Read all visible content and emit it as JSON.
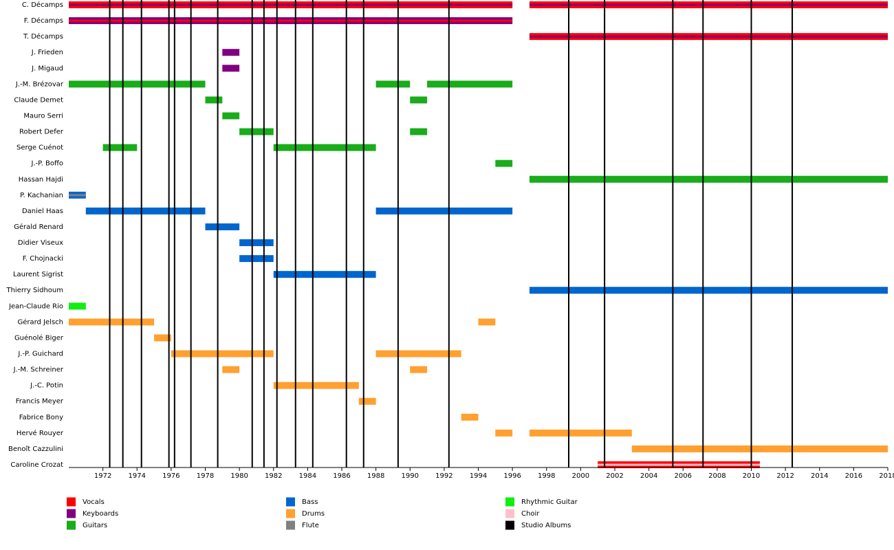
{
  "chart_data": {
    "type": "timeline",
    "xlim": [
      1970,
      2018
    ],
    "xticks": [
      1972,
      1974,
      1976,
      1978,
      1980,
      1982,
      1984,
      1986,
      1988,
      1990,
      1992,
      1994,
      1996,
      1998,
      2000,
      2002,
      2004,
      2006,
      2008,
      2010,
      2012,
      2014,
      2016,
      2018
    ],
    "series": [
      {
        "name": "Vocals",
        "color": "#ff0000"
      },
      {
        "name": "Keyboards",
        "color": "#800080"
      },
      {
        "name": "Guitars",
        "color": "#1aac1a"
      },
      {
        "name": "Bass",
        "color": "#0066cc"
      },
      {
        "name": "Drums",
        "color": "#ffa030"
      },
      {
        "name": "Flute",
        "color": "#808080"
      },
      {
        "name": "Rhythmic Guitar",
        "color": "#11ee11"
      },
      {
        "name": "Choir",
        "color": "#ffc0cb"
      },
      {
        "name": "Studio Albums",
        "color": "#000000"
      }
    ],
    "albums": [
      1972.4,
      1973.17,
      1974.26,
      1975.87,
      1976.2,
      1977.16,
      1978.73,
      1980.75,
      1981.44,
      1982.2,
      1983.29,
      1984.3,
      1986.27,
      1987.28,
      1989.3,
      1992.28,
      1999.3,
      2001.4,
      2005.4,
      2007.17,
      2010.0,
      2012.4
    ],
    "members": [
      {
        "name": "C. Décamps",
        "periods": [
          {
            "start": 1970,
            "end": 1996,
            "role": "Vocals",
            "also": "Keyboards"
          },
          {
            "start": 1997,
            "end": 2018,
            "role": "Vocals",
            "also": "Keyboards"
          }
        ]
      },
      {
        "name": "F. Décamps",
        "periods": [
          {
            "start": 1970,
            "end": 1996,
            "role": "Keyboards",
            "also": "Vocals"
          }
        ]
      },
      {
        "name": "T. Décamps",
        "periods": [
          {
            "start": 1997,
            "end": 2018,
            "role": "Vocals",
            "also": "Keyboards"
          }
        ]
      },
      {
        "name": "J. Frieden",
        "periods": [
          {
            "start": 1979,
            "end": 1980,
            "role": "Keyboards"
          }
        ]
      },
      {
        "name": "J. Migaud",
        "periods": [
          {
            "start": 1979,
            "end": 1980,
            "role": "Keyboards"
          }
        ]
      },
      {
        "name": "J.-M. Brézovar",
        "periods": [
          {
            "start": 1970,
            "end": 1978,
            "role": "Guitars"
          },
          {
            "start": 1988,
            "end": 1990,
            "role": "Guitars"
          },
          {
            "start": 1991,
            "end": 1996,
            "role": "Guitars"
          }
        ]
      },
      {
        "name": "Claude Demet",
        "periods": [
          {
            "start": 1978,
            "end": 1979,
            "role": "Guitars"
          },
          {
            "start": 1990,
            "end": 1991,
            "role": "Guitars"
          }
        ]
      },
      {
        "name": "Mauro Serri",
        "periods": [
          {
            "start": 1979,
            "end": 1980,
            "role": "Guitars"
          }
        ]
      },
      {
        "name": "Robert Defer",
        "periods": [
          {
            "start": 1980,
            "end": 1982,
            "role": "Guitars"
          },
          {
            "start": 1990,
            "end": 1991,
            "role": "Guitars"
          }
        ]
      },
      {
        "name": "Serge Cuénot",
        "periods": [
          {
            "start": 1972,
            "end": 1974,
            "role": "Guitars"
          },
          {
            "start": 1982,
            "end": 1988,
            "role": "Guitars"
          }
        ]
      },
      {
        "name": "J.-P. Boffo",
        "periods": [
          {
            "start": 1995,
            "end": 1996,
            "role": "Guitars"
          }
        ]
      },
      {
        "name": "Hassan Hajdi",
        "periods": [
          {
            "start": 1997,
            "end": 2018,
            "role": "Guitars"
          }
        ]
      },
      {
        "name": "P. Kachanian",
        "periods": [
          {
            "start": 1970,
            "end": 1971,
            "role": "Bass",
            "also": "Flute"
          }
        ]
      },
      {
        "name": "Daniel Haas",
        "periods": [
          {
            "start": 1971,
            "end": 1978,
            "role": "Bass"
          },
          {
            "start": 1988,
            "end": 1996,
            "role": "Bass"
          }
        ]
      },
      {
        "name": "Gérald Renard",
        "periods": [
          {
            "start": 1978,
            "end": 1980,
            "role": "Bass"
          }
        ]
      },
      {
        "name": "Didier Viseux",
        "periods": [
          {
            "start": 1980,
            "end": 1982,
            "role": "Bass"
          }
        ]
      },
      {
        "name": "F. Chojnacki",
        "periods": [
          {
            "start": 1980,
            "end": 1982,
            "role": "Bass"
          }
        ]
      },
      {
        "name": "Laurent Sigrist",
        "periods": [
          {
            "start": 1982,
            "end": 1988,
            "role": "Bass"
          }
        ]
      },
      {
        "name": "Thierry Sidhoum",
        "periods": [
          {
            "start": 1997,
            "end": 2018,
            "role": "Bass"
          }
        ]
      },
      {
        "name": "Jean-Claude Rio",
        "periods": [
          {
            "start": 1970,
            "end": 1971,
            "role": "Rhythmic Guitar"
          }
        ]
      },
      {
        "name": "Gérard Jelsch",
        "periods": [
          {
            "start": 1970,
            "end": 1975,
            "role": "Drums"
          },
          {
            "start": 1994,
            "end": 1995,
            "role": "Drums"
          }
        ]
      },
      {
        "name": "Guénolé Biger",
        "periods": [
          {
            "start": 1975,
            "end": 1976,
            "role": "Drums"
          }
        ]
      },
      {
        "name": "J.-P. Guichard",
        "periods": [
          {
            "start": 1976,
            "end": 1982,
            "role": "Drums"
          },
          {
            "start": 1988,
            "end": 1993,
            "role": "Drums"
          }
        ]
      },
      {
        "name": "J.-M. Schreiner",
        "periods": [
          {
            "start": 1979,
            "end": 1980,
            "role": "Drums"
          },
          {
            "start": 1990,
            "end": 1991,
            "role": "Drums"
          }
        ]
      },
      {
        "name": "J.-C. Potin",
        "periods": [
          {
            "start": 1982,
            "end": 1987,
            "role": "Drums"
          }
        ]
      },
      {
        "name": "Francis Meyer",
        "periods": [
          {
            "start": 1987,
            "end": 1988,
            "role": "Drums"
          }
        ]
      },
      {
        "name": "Fabrice Bony",
        "periods": [
          {
            "start": 1993,
            "end": 1994,
            "role": "Drums"
          }
        ]
      },
      {
        "name": "Hervé Rouyer",
        "periods": [
          {
            "start": 1995,
            "end": 1996,
            "role": "Drums"
          },
          {
            "start": 1997,
            "end": 2003,
            "role": "Drums"
          }
        ]
      },
      {
        "name": "Benoît Cazzulini",
        "periods": [
          {
            "start": 2003,
            "end": 2018,
            "role": "Drums"
          }
        ]
      },
      {
        "name": "Caroline Crozat",
        "periods": [
          {
            "start": 2001,
            "end": 2010.5,
            "role": "Vocals",
            "also": "Choir"
          }
        ]
      }
    ]
  }
}
